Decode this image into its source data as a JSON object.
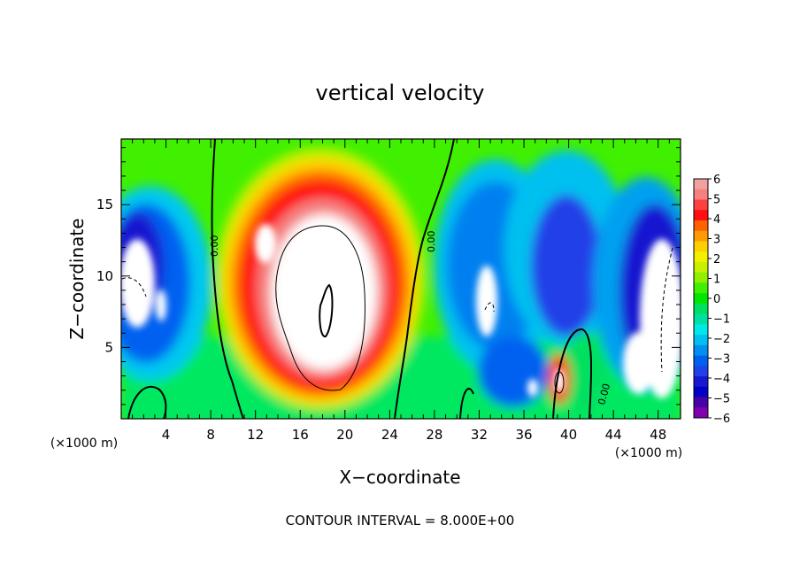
{
  "chart_data": {
    "type": "heatmap",
    "title": "vertical velocity",
    "xlabel": "X−coordinate",
    "ylabel": "Z−coordinate",
    "x_unit": "(×1000 m)",
    "y_unit": "(×1000 m)",
    "footer": "CONTOUR INTERVAL = 8.000E+00",
    "xlim": [
      0,
      50
    ],
    "ylim": [
      0,
      19.6
    ],
    "x_ticks": [
      4,
      8,
      12,
      16,
      20,
      24,
      28,
      32,
      36,
      40,
      44,
      48
    ],
    "y_ticks": [
      5,
      10,
      15
    ],
    "contour_labels": [
      "0.00",
      "0.00",
      "0.00"
    ],
    "colorbar": {
      "min": -6,
      "max": 6,
      "ticks": [
        "6",
        "5",
        "4",
        "3",
        "2",
        "1",
        "0",
        "−1",
        "−2",
        "−3",
        "−4",
        "−5",
        "−6"
      ],
      "colors": [
        "#f2a0a0",
        "#f58080",
        "#ff4040",
        "#ff1010",
        "#ff6000",
        "#ff9a00",
        "#ffd000",
        "#f0f000",
        "#c8f000",
        "#90f000",
        "#40f000",
        "#00e800",
        "#00e060",
        "#00e0a0",
        "#00e8e8",
        "#00c0f0",
        "#0090f0",
        "#0060f0",
        "#2040e8",
        "#1818d0",
        "#0000c8",
        "#4800a8",
        "#8000b0"
      ],
      "over_color": "#ffffff",
      "under_color": "#ffffff"
    },
    "updraft_core": {
      "x_range": [
        12,
        25
      ],
      "z_range": [
        1,
        14
      ],
      "peak": "> 6"
    },
    "downdraft_regions": [
      {
        "x_range": [
          0,
          2
        ],
        "z_range": [
          5,
          14
        ]
      },
      {
        "x_range": [
          46,
          50
        ],
        "z_range": [
          1,
          14
        ]
      }
    ]
  }
}
